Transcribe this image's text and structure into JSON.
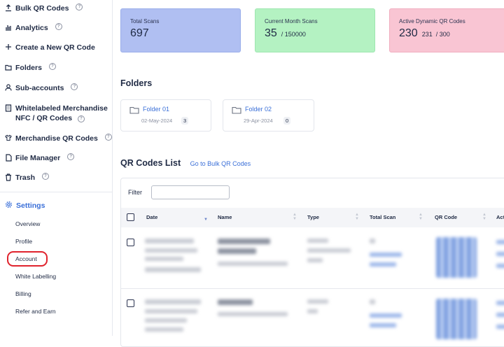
{
  "sidebar": {
    "items": [
      {
        "label": "Bulk QR Codes",
        "icon": "upload-icon",
        "help": true
      },
      {
        "label": "Analytics",
        "icon": "bar-chart-icon",
        "help": true
      },
      {
        "label": "Create a New QR Code",
        "icon": "plus-icon",
        "help": false
      },
      {
        "label": "Folders",
        "icon": "folder-icon",
        "help": true
      },
      {
        "label": "Sub-accounts",
        "icon": "user-icon",
        "help": true
      },
      {
        "label": "Whitelabeled Merchandise",
        "label2": "NFC / QR Codes",
        "icon": "building-icon",
        "help": true
      },
      {
        "label": "Merchandise QR Codes",
        "icon": "shirt-icon",
        "help": true
      },
      {
        "label": "File Manager",
        "icon": "file-icon",
        "help": true
      },
      {
        "label": "Trash",
        "icon": "trash-icon",
        "help": true
      }
    ],
    "settings": {
      "label": "Settings",
      "icon": "gear-icon"
    },
    "settings_items": [
      "Overview",
      "Profile",
      "Account",
      "White Labelling",
      "Billing",
      "Refer and Earn"
    ],
    "help_glyph": "?"
  },
  "stats": [
    {
      "label": "Total Scans",
      "value": "697",
      "sub": "",
      "color": "#b0bff2"
    },
    {
      "label": "Current Month Scans",
      "value": "35",
      "sub": "/ 150000",
      "color": "#b4f2c2"
    },
    {
      "label": "Active Dynamic QR Codes",
      "value": "230",
      "sub": "231  / 300",
      "color": "#f9c5d3"
    }
  ],
  "folders": {
    "title": "Folders",
    "items": [
      {
        "name": "Folder 01",
        "date": "02-May-2024",
        "count": "3"
      },
      {
        "name": "Folder 02",
        "date": "29-Apr-2024",
        "count": "0"
      }
    ]
  },
  "qr_list": {
    "title": "QR Codes List",
    "bulk_link": "Go to Bulk QR Codes",
    "filter_label": "Filter",
    "filter_value": "",
    "columns": [
      "Date",
      "Name",
      "Type",
      "Total Scan",
      "QR Code",
      "Act"
    ],
    "sort_glyph": "▲",
    "sort_glyph_down": "▼"
  }
}
